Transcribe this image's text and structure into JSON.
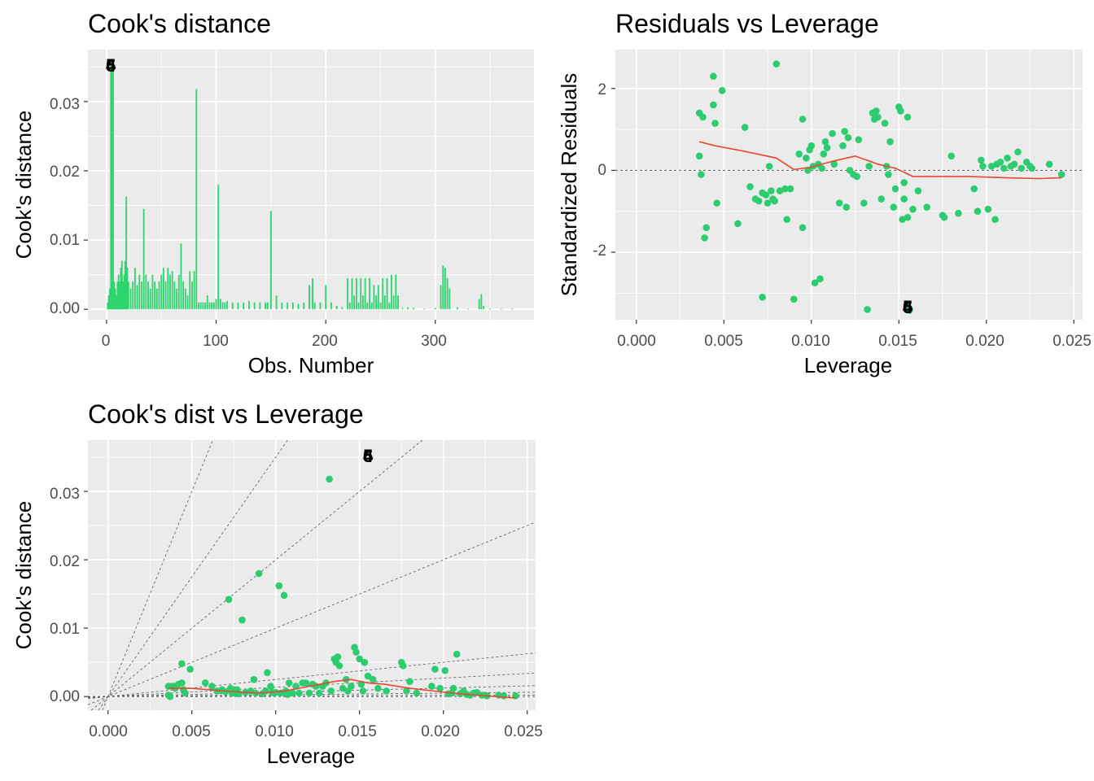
{
  "colors": {
    "point": "#2ECC71",
    "bar": "#2FD46E",
    "smooth": "#E8482E",
    "panel": "#EBEBEB",
    "grid": "#FFFFFF",
    "ref": "#555555"
  },
  "panels": {
    "cooks_distance": {
      "title": "Cook's distance",
      "xlabel": "Obs. Number",
      "ylabel": "Cook's distance",
      "xticks": [
        "0",
        "100",
        "200",
        "300"
      ],
      "yticks": [
        "0.00",
        "0.01",
        "0.02",
        "0.03"
      ],
      "labels": [
        "4",
        "5",
        "6"
      ]
    },
    "residuals_vs_leverage": {
      "title": "Residuals vs Leverage",
      "xlabel": "Leverage",
      "ylabel": "Standardized Residuals",
      "xticks": [
        "0.000",
        "0.005",
        "0.010",
        "0.015",
        "0.020",
        "0.025"
      ],
      "yticks": [
        "2",
        "0",
        "-2"
      ],
      "labels": [
        "4",
        "5",
        "6"
      ]
    },
    "cooks_vs_leverage": {
      "title": "Cook's dist vs Leverage",
      "xlabel": "Leverage",
      "ylabel": "Cook's distance",
      "xticks": [
        "0.000",
        "0.005",
        "0.010",
        "0.015",
        "0.020",
        "0.025"
      ],
      "yticks": [
        "0.00",
        "0.01",
        "0.02",
        "0.03"
      ],
      "labels": [
        "4",
        "5",
        "6"
      ]
    }
  },
  "chart_data": [
    {
      "type": "bar",
      "title": "Cook's distance",
      "xlabel": "Obs. Number",
      "ylabel": "Cook's distance",
      "xlim": [
        -17,
        390
      ],
      "ylim": [
        -0.0015,
        0.0375
      ],
      "x": [
        1,
        2,
        3,
        4,
        5,
        6,
        7,
        8,
        9,
        10,
        11,
        12,
        13,
        14,
        15,
        16,
        17,
        18,
        19,
        20,
        22,
        24,
        26,
        28,
        30,
        32,
        34,
        36,
        38,
        40,
        42,
        44,
        46,
        48,
        50,
        52,
        54,
        56,
        58,
        60,
        62,
        64,
        66,
        68,
        70,
        72,
        74,
        76,
        78,
        80,
        82,
        84,
        86,
        88,
        90,
        92,
        94,
        96,
        98,
        100,
        102,
        104,
        106,
        108,
        110,
        115,
        120,
        125,
        130,
        135,
        140,
        145,
        147,
        150,
        155,
        160,
        165,
        170,
        175,
        180,
        185,
        188,
        190,
        195,
        200,
        205,
        210,
        215,
        220,
        222,
        224,
        226,
        228,
        230,
        232,
        234,
        236,
        238,
        240,
        242,
        244,
        246,
        248,
        250,
        252,
        254,
        256,
        258,
        260,
        262,
        264,
        266,
        270,
        275,
        280,
        290,
        300,
        305,
        307,
        309,
        311,
        313,
        320,
        330,
        340,
        342,
        344,
        350,
        360,
        370
      ],
      "values": [
        0.001,
        0.002,
        0.003,
        0.0355,
        0.0355,
        0.0355,
        0.004,
        0.003,
        0.002,
        0.004,
        0.005,
        0.004,
        0.006,
        0.007,
        0.004,
        0.005,
        0.007,
        0.0163,
        0.006,
        0.004,
        0.003,
        0.004,
        0.006,
        0.0035,
        0.005,
        0.004,
        0.0145,
        0.005,
        0.004,
        0.003,
        0.005,
        0.004,
        0.003,
        0.004,
        0.005,
        0.006,
        0.004,
        0.006,
        0.005,
        0.0055,
        0.004,
        0.003,
        0.005,
        0.0095,
        0.004,
        0.003,
        0.002,
        0.0055,
        0.004,
        0.0055,
        0.0318,
        0.001,
        0.001,
        0.001,
        0.001,
        0.002,
        0.001,
        0.001,
        0.001,
        0.0015,
        0.018,
        0.0015,
        0.001,
        0.001,
        0.0012,
        0.001,
        0.001,
        0.001,
        0.0012,
        0.001,
        0.001,
        0.001,
        0.001,
        0.0142,
        0.002,
        0.001,
        0.001,
        0.001,
        0.0008,
        0.001,
        0.0035,
        0.0045,
        0.001,
        0.001,
        0.0035,
        0.001,
        0.0005,
        0.0003,
        0.0045,
        0.001,
        0.0045,
        0.002,
        0.0045,
        0.001,
        0.0045,
        0.002,
        0.0045,
        0.001,
        0.0045,
        0.001,
        0.0035,
        0.002,
        0.0035,
        0.001,
        0.0045,
        0.002,
        0.0045,
        0.001,
        0.005,
        0.002,
        0.005,
        0.002,
        0.0002,
        0.0003,
        0.0002,
        0.0001,
        0.0002,
        0.0035,
        0.0063,
        0.006,
        0.0045,
        0.003,
        0.0003,
        0.0001,
        0.0015,
        0.0022,
        0.0005,
        0.0001,
        0.0001,
        0.0001
      ]
    },
    {
      "type": "scatter",
      "title": "Residuals vs Leverage",
      "xlabel": "Leverage",
      "ylabel": "Standardized Residuals",
      "xlim": [
        -0.0012,
        0.0255
      ],
      "ylim": [
        -3.65,
        2.95
      ],
      "points": [
        [
          0.0036,
          1.4
        ],
        [
          0.0038,
          1.3
        ],
        [
          0.0036,
          0.35
        ],
        [
          0.0037,
          -0.1
        ],
        [
          0.0039,
          -1.65
        ],
        [
          0.004,
          -1.4
        ],
        [
          0.0044,
          1.6
        ],
        [
          0.0044,
          2.3
        ],
        [
          0.0045,
          1.15
        ],
        [
          0.0046,
          -0.8
        ],
        [
          0.0049,
          1.95
        ],
        [
          0.0058,
          -1.3
        ],
        [
          0.0062,
          1.05
        ],
        [
          0.0065,
          -0.4
        ],
        [
          0.0068,
          -0.7
        ],
        [
          0.007,
          -0.75
        ],
        [
          0.0072,
          -0.55
        ],
        [
          0.0072,
          -3.1
        ],
        [
          0.0074,
          -0.6
        ],
        [
          0.0075,
          -0.8
        ],
        [
          0.0076,
          0.1
        ],
        [
          0.0077,
          -0.5
        ],
        [
          0.0078,
          -0.7
        ],
        [
          0.0079,
          -0.75
        ],
        [
          0.008,
          2.6
        ],
        [
          0.0082,
          -0.5
        ],
        [
          0.0085,
          -0.45
        ],
        [
          0.0086,
          -1.2
        ],
        [
          0.0088,
          -0.45
        ],
        [
          0.009,
          -3.15
        ],
        [
          0.0093,
          0.4
        ],
        [
          0.0095,
          -1.4
        ],
        [
          0.0095,
          1.25
        ],
        [
          0.0097,
          0.3
        ],
        [
          0.0098,
          0.0
        ],
        [
          0.0099,
          0.5
        ],
        [
          0.01,
          0.6
        ],
        [
          0.0101,
          0.1
        ],
        [
          0.0102,
          -2.75
        ],
        [
          0.0104,
          0.15
        ],
        [
          0.0105,
          -2.65
        ],
        [
          0.0106,
          0.05
        ],
        [
          0.0107,
          0.4
        ],
        [
          0.0108,
          0.7
        ],
        [
          0.0109,
          0.55
        ],
        [
          0.0112,
          0.9
        ],
        [
          0.0113,
          0.15
        ],
        [
          0.0116,
          -0.8
        ],
        [
          0.0118,
          0.6
        ],
        [
          0.0119,
          0.95
        ],
        [
          0.012,
          -0.9
        ],
        [
          0.0121,
          0.8
        ],
        [
          0.0122,
          0.0
        ],
        [
          0.0124,
          -0.1
        ],
        [
          0.0126,
          -0.15
        ],
        [
          0.0127,
          0.75
        ],
        [
          0.013,
          -0.8
        ],
        [
          0.0132,
          -3.4
        ],
        [
          0.0133,
          0.1
        ],
        [
          0.0135,
          1.4
        ],
        [
          0.0136,
          1.25
        ],
        [
          0.0137,
          1.45
        ],
        [
          0.0138,
          1.3
        ],
        [
          0.014,
          -0.7
        ],
        [
          0.0142,
          1.15
        ],
        [
          0.0143,
          0.1
        ],
        [
          0.0144,
          -0.1
        ],
        [
          0.0145,
          0.7
        ],
        [
          0.0147,
          -0.9
        ],
        [
          0.0148,
          -0.45
        ],
        [
          0.015,
          1.55
        ],
        [
          0.0151,
          1.45
        ],
        [
          0.0152,
          -1.2
        ],
        [
          0.0153,
          -0.7
        ],
        [
          0.0153,
          -0.3
        ],
        [
          0.0155,
          1.3
        ],
        [
          0.0155,
          -1.15
        ],
        [
          0.0158,
          -0.95
        ],
        [
          0.0161,
          -0.5
        ],
        [
          0.0166,
          -0.9
        ],
        [
          0.0175,
          -1.1
        ],
        [
          0.0176,
          -1.15
        ],
        [
          0.018,
          0.35
        ],
        [
          0.0184,
          -1.05
        ],
        [
          0.0193,
          -0.45
        ],
        [
          0.0195,
          -1.0
        ],
        [
          0.0197,
          0.25
        ],
        [
          0.0198,
          0.1
        ],
        [
          0.0201,
          -0.95
        ],
        [
          0.0203,
          0.1
        ],
        [
          0.0205,
          -1.2
        ],
        [
          0.0206,
          0.15
        ],
        [
          0.0208,
          0.2
        ],
        [
          0.021,
          0.05
        ],
        [
          0.0212,
          0.3
        ],
        [
          0.0214,
          0.1
        ],
        [
          0.0216,
          0.15
        ],
        [
          0.0218,
          0.45
        ],
        [
          0.022,
          0.05
        ],
        [
          0.0223,
          0.2
        ],
        [
          0.0225,
          0.1
        ],
        [
          0.0226,
          0.05
        ],
        [
          0.0236,
          0.15
        ],
        [
          0.0243,
          -0.1
        ],
        [
          0.0156,
          -3.42
        ],
        [
          0.0156,
          -3.38
        ]
      ],
      "smooth": [
        [
          0.0036,
          0.7
        ],
        [
          0.0045,
          0.6
        ],
        [
          0.006,
          0.48
        ],
        [
          0.008,
          0.3
        ],
        [
          0.009,
          0.02
        ],
        [
          0.01,
          0.08
        ],
        [
          0.0112,
          0.22
        ],
        [
          0.0125,
          0.35
        ],
        [
          0.0138,
          0.15
        ],
        [
          0.0148,
          0.05
        ],
        [
          0.0158,
          -0.15
        ],
        [
          0.0175,
          -0.15
        ],
        [
          0.019,
          -0.15
        ],
        [
          0.021,
          -0.18
        ],
        [
          0.023,
          -0.2
        ],
        [
          0.0243,
          -0.18
        ]
      ],
      "hline": 0,
      "labels": [
        {
          "text": "4",
          "x": 0.0156,
          "y": -3.4
        },
        {
          "text": "5",
          "x": 0.0156,
          "y": -3.4
        },
        {
          "text": "6",
          "x": 0.0156,
          "y": -3.4
        }
      ]
    },
    {
      "type": "scatter",
      "title": "Cook's dist vs Leverage",
      "xlabel": "Leverage",
      "ylabel": "Cook's distance",
      "xlim": [
        -0.0012,
        0.0255
      ],
      "ylim": [
        -0.002,
        0.0375
      ],
      "points": [
        [
          0.0036,
          0.0015
        ],
        [
          0.0036,
          0.0002
        ],
        [
          0.0037,
          0.0
        ],
        [
          0.0038,
          0.0015
        ],
        [
          0.0039,
          0.0015
        ],
        [
          0.004,
          0.0012
        ],
        [
          0.0042,
          0.0018
        ],
        [
          0.0044,
          0.0048
        ],
        [
          0.0044,
          0.002
        ],
        [
          0.0045,
          0.001
        ],
        [
          0.0046,
          0.0005
        ],
        [
          0.0049,
          0.004
        ],
        [
          0.0058,
          0.002
        ],
        [
          0.0062,
          0.0015
        ],
        [
          0.0065,
          0.0008
        ],
        [
          0.0068,
          0.001
        ],
        [
          0.007,
          0.0007
        ],
        [
          0.0072,
          0.0142
        ],
        [
          0.0073,
          0.0012
        ],
        [
          0.0074,
          0.0005
        ],
        [
          0.0075,
          0.001
        ],
        [
          0.0076,
          0.0005
        ],
        [
          0.0077,
          0.001
        ],
        [
          0.0078,
          0.0004
        ],
        [
          0.008,
          0.0112
        ],
        [
          0.0082,
          0.0006
        ],
        [
          0.0085,
          0.0008
        ],
        [
          0.0087,
          0.0025
        ],
        [
          0.0088,
          0.0005
        ],
        [
          0.009,
          0.018
        ],
        [
          0.0092,
          0.0004
        ],
        [
          0.0094,
          0.0008
        ],
        [
          0.0095,
          0.0035
        ],
        [
          0.0097,
          0.0015
        ],
        [
          0.0098,
          0.0006
        ],
        [
          0.0099,
          0.0005
        ],
        [
          0.01,
          0.0006
        ],
        [
          0.0102,
          0.0162
        ],
        [
          0.0103,
          0.0005
        ],
        [
          0.0105,
          0.0148
        ],
        [
          0.0106,
          0.0008
        ],
        [
          0.0107,
          0.0003
        ],
        [
          0.0108,
          0.002
        ],
        [
          0.0109,
          0.0005
        ],
        [
          0.011,
          0.0005
        ],
        [
          0.0112,
          0.0015
        ],
        [
          0.0114,
          0.0005
        ],
        [
          0.0116,
          0.002
        ],
        [
          0.0118,
          0.002
        ],
        [
          0.012,
          0.0005
        ],
        [
          0.0122,
          0.0018
        ],
        [
          0.0124,
          0.0015
        ],
        [
          0.0126,
          0.0005
        ],
        [
          0.0128,
          0.0015
        ],
        [
          0.013,
          0.002
        ],
        [
          0.0132,
          0.0318
        ],
        [
          0.0133,
          0.0008
        ],
        [
          0.0135,
          0.0055
        ],
        [
          0.0136,
          0.005
        ],
        [
          0.0137,
          0.0058
        ],
        [
          0.0138,
          0.0045
        ],
        [
          0.014,
          0.0012
        ],
        [
          0.0142,
          0.0025
        ],
        [
          0.0143,
          0.0008
        ],
        [
          0.0145,
          0.0015
        ],
        [
          0.0147,
          0.0072
        ],
        [
          0.0148,
          0.0065
        ],
        [
          0.015,
          0.0055
        ],
        [
          0.0151,
          0.0018
        ],
        [
          0.0152,
          0.0008
        ],
        [
          0.0153,
          0.005
        ],
        [
          0.0155,
          0.003
        ],
        [
          0.0158,
          0.0025
        ],
        [
          0.0161,
          0.0012
        ],
        [
          0.0166,
          0.0008
        ],
        [
          0.0175,
          0.005
        ],
        [
          0.0176,
          0.0045
        ],
        [
          0.0178,
          0.0008
        ],
        [
          0.018,
          0.0022
        ],
        [
          0.0184,
          0.0005
        ],
        [
          0.0193,
          0.0015
        ],
        [
          0.0195,
          0.004
        ],
        [
          0.0198,
          0.0012
        ],
        [
          0.0201,
          0.0038
        ],
        [
          0.0203,
          0.0004
        ],
        [
          0.0205,
          0.0005
        ],
        [
          0.0206,
          0.0012
        ],
        [
          0.0208,
          0.0062
        ],
        [
          0.021,
          0.0004
        ],
        [
          0.0212,
          0.0008
        ],
        [
          0.0214,
          0.0003
        ],
        [
          0.0216,
          0.0002
        ],
        [
          0.0218,
          0.0005
        ],
        [
          0.022,
          0.0006
        ],
        [
          0.0223,
          0.0002
        ],
        [
          0.0225,
          0.0002
        ],
        [
          0.0226,
          0.0001
        ],
        [
          0.0233,
          0.0002
        ],
        [
          0.0236,
          0.0001
        ],
        [
          0.0243,
          0.0001
        ]
      ],
      "smooth": [
        [
          0.0036,
          0.0012
        ],
        [
          0.005,
          0.0012
        ],
        [
          0.007,
          0.0008
        ],
        [
          0.009,
          0.0005
        ],
        [
          0.0105,
          0.0008
        ],
        [
          0.012,
          0.0015
        ],
        [
          0.0135,
          0.0022
        ],
        [
          0.0145,
          0.0025
        ],
        [
          0.0155,
          0.002
        ],
        [
          0.0165,
          0.0018
        ],
        [
          0.018,
          0.0012
        ],
        [
          0.0195,
          0.0008
        ],
        [
          0.021,
          0.0004
        ],
        [
          0.0225,
          0.0001
        ],
        [
          0.0243,
          -0.0002
        ]
      ],
      "ref_slopes": [
        0.0083,
        0.0248,
        0.0625,
        0.135,
        0.25,
        1.0,
        2.0,
        3.5,
        6.0
      ],
      "labels": [
        {
          "text": "4",
          "x": 0.0156,
          "y": 0.0355
        },
        {
          "text": "5",
          "x": 0.0156,
          "y": 0.0355
        },
        {
          "text": "6",
          "x": 0.0156,
          "y": 0.0355
        }
      ]
    }
  ]
}
